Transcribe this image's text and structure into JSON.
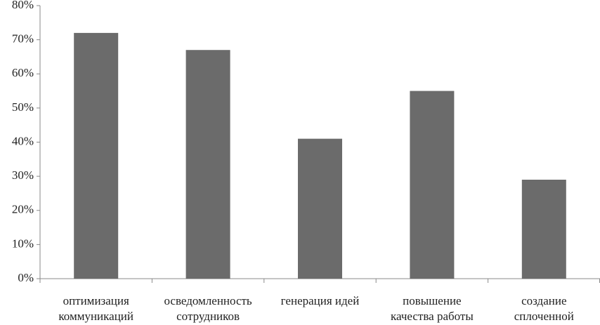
{
  "chart_data": {
    "type": "bar",
    "categories": [
      [
        "оптимизация",
        "коммуникаций"
      ],
      [
        "осведомленность",
        "сотрудников"
      ],
      [
        "генерация идей"
      ],
      [
        "повышение",
        "качества работы"
      ],
      [
        "создание",
        "сплоченной"
      ]
    ],
    "values": [
      72,
      67,
      41,
      55,
      29
    ],
    "color": "#6b6b6b",
    "ylim": [
      0,
      80
    ],
    "yticks": [
      {
        "value": 0,
        "label": "0%"
      },
      {
        "value": 10,
        "label": "10%"
      },
      {
        "value": 20,
        "label": "20%"
      },
      {
        "value": 30,
        "label": "30%"
      },
      {
        "value": 40,
        "label": "40%"
      },
      {
        "value": 50,
        "label": "50%"
      },
      {
        "value": 60,
        "label": "60%"
      },
      {
        "value": 70,
        "label": "70%"
      },
      {
        "value": 80,
        "label": "80%"
      }
    ],
    "grid": false
  }
}
